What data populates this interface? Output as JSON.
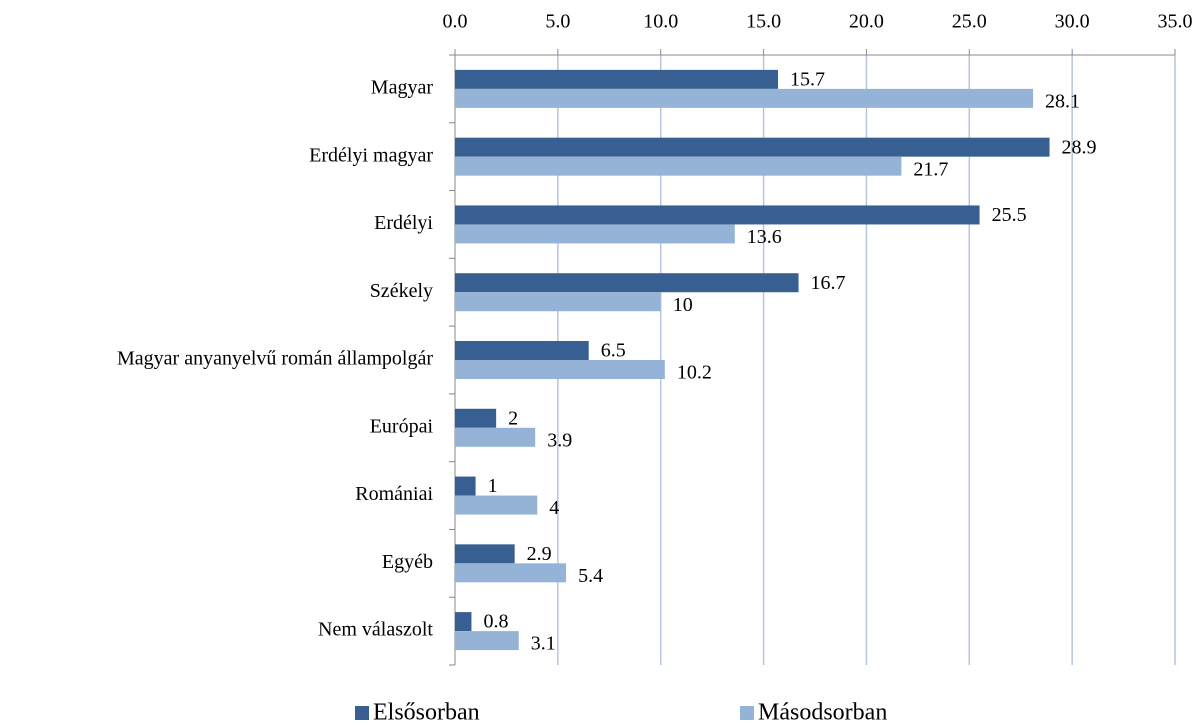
{
  "chart_data": {
    "type": "bar",
    "orientation": "horizontal",
    "categories": [
      "Magyar",
      "Erdélyi magyar",
      "Erdélyi",
      "Székely",
      "Magyar anyanyelvű román állampolgár",
      "Európai",
      "Romániai",
      "Egyéb",
      "Nem válaszolt"
    ],
    "series": [
      {
        "name": "Elsősorban",
        "color": "#375f91",
        "values": [
          15.7,
          28.9,
          25.5,
          16.7,
          6.5,
          2,
          1,
          2.9,
          0.8
        ]
      },
      {
        "name": "Másodsorban",
        "color": "#95b3d7",
        "values": [
          28.1,
          21.7,
          13.6,
          10,
          10.2,
          3.9,
          4,
          5.4,
          3.1
        ]
      }
    ],
    "xlim": [
      0,
      35
    ],
    "xticks": [
      {
        "value": 0,
        "label": "0.0"
      },
      {
        "value": 5,
        "label": "5.0"
      },
      {
        "value": 10,
        "label": "10.0"
      },
      {
        "value": 15,
        "label": "15.0"
      },
      {
        "value": 20,
        "label": "20.0"
      },
      {
        "value": 25,
        "label": "25.0"
      },
      {
        "value": 30,
        "label": "30.0"
      },
      {
        "value": 35,
        "label": "35.0"
      }
    ],
    "grid": true,
    "legend": "bottom"
  }
}
